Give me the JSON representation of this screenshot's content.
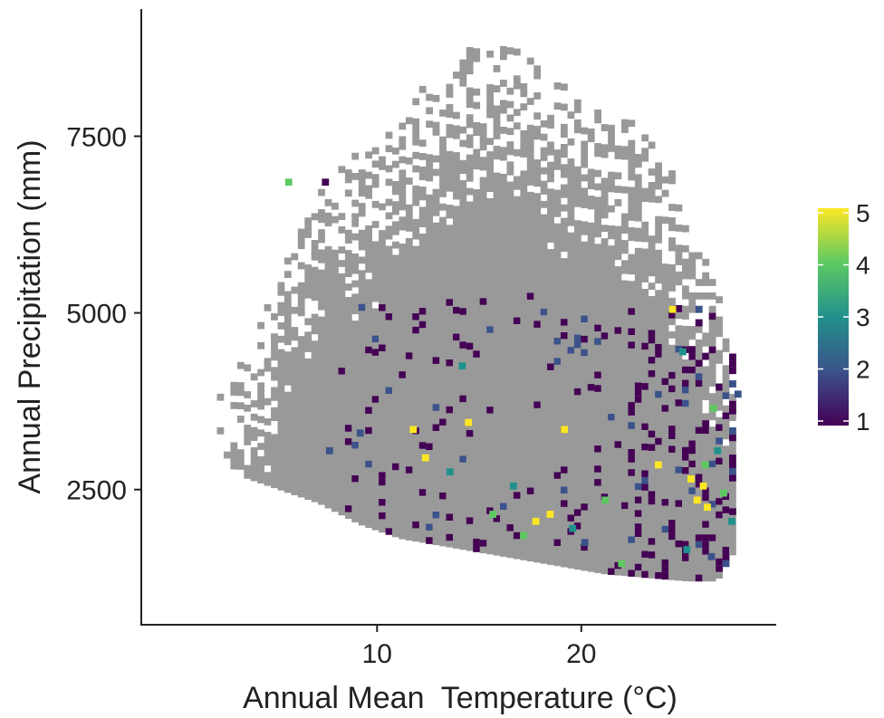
{
  "chart_data": {
    "type": "heatmap",
    "title": "",
    "xlabel": "Annual Mean  Temperature (°C)",
    "ylabel": "Annual Precipitation (mm)",
    "xlim": [
      -1.5,
      29.5
    ],
    "ylim": [
      600,
      9300
    ],
    "xticks": [
      10,
      20
    ],
    "xtick_labels": [
      "10",
      "20"
    ],
    "yticks": [
      2500,
      5000,
      7500
    ],
    "ytick_labels": [
      "2500",
      "5000",
      "7500"
    ],
    "grid": false,
    "bin_size": {
      "temperature": 0.33,
      "precipitation": 95
    },
    "background_cell_color": "#999999",
    "colorscale": "viridis",
    "colorscale_colors": [
      "#440154",
      "#3b528b",
      "#21918c",
      "#5ec962",
      "#fde725"
    ],
    "legend": {
      "placement": "right",
      "min": 1,
      "max": 5,
      "ticks": [
        1,
        2,
        3,
        4,
        5
      ],
      "tick_labels": [
        "1",
        "2",
        "3",
        "4",
        "5"
      ]
    },
    "coverage": {
      "description_points": "Upper precipitation bound and lower precipitation bound of the grey (value 0) region per temperature",
      "temperature": [
        1.5,
        3,
        5,
        7,
        9,
        11,
        13,
        15,
        17,
        19,
        21,
        23,
        25,
        26.5,
        27.5
      ],
      "upper_precipitation": [
        3700,
        4200,
        5500,
        6700,
        7300,
        7800,
        8400,
        8900,
        8600,
        8200,
        7900,
        7500,
        6600,
        5300,
        4300
      ],
      "lower_precipitation": [
        3400,
        2700,
        2500,
        2300,
        2000,
        1800,
        1700,
        1600,
        1500,
        1400,
        1300,
        1250,
        1200,
        1200,
        1700
      ]
    },
    "highlighted_cells": [
      {
        "t": 5.5,
        "p": 6800,
        "v": 4
      },
      {
        "t": 7.3,
        "p": 6800,
        "v": 1
      },
      {
        "t": 7.5,
        "p": 3000,
        "v": 2
      },
      {
        "t": 9.0,
        "p": 3250,
        "v": 2
      },
      {
        "t": 11.6,
        "p": 3300,
        "v": 5
      },
      {
        "t": 12.2,
        "p": 2900,
        "v": 5
      },
      {
        "t": 13.4,
        "p": 2700,
        "v": 3
      },
      {
        "t": 14.3,
        "p": 3400,
        "v": 5
      },
      {
        "t": 14.0,
        "p": 4200,
        "v": 3
      },
      {
        "t": 15.5,
        "p": 2100,
        "v": 4
      },
      {
        "t": 16.5,
        "p": 2500,
        "v": 3
      },
      {
        "t": 17.0,
        "p": 1800,
        "v": 4
      },
      {
        "t": 17.6,
        "p": 2000,
        "v": 5
      },
      {
        "t": 18.3,
        "p": 2100,
        "v": 5
      },
      {
        "t": 19.0,
        "p": 3300,
        "v": 5
      },
      {
        "t": 19.4,
        "p": 1900,
        "v": 3
      },
      {
        "t": 21.0,
        "p": 2300,
        "v": 4
      },
      {
        "t": 21.8,
        "p": 1400,
        "v": 4
      },
      {
        "t": 23.6,
        "p": 2800,
        "v": 5
      },
      {
        "t": 24.3,
        "p": 5000,
        "v": 5
      },
      {
        "t": 24.8,
        "p": 4400,
        "v": 3
      },
      {
        "t": 25.2,
        "p": 2600,
        "v": 5
      },
      {
        "t": 25.5,
        "p": 2300,
        "v": 5
      },
      {
        "t": 25.8,
        "p": 2500,
        "v": 5
      },
      {
        "t": 25.9,
        "p": 2800,
        "v": 4
      },
      {
        "t": 26.0,
        "p": 2200,
        "v": 5
      },
      {
        "t": 26.3,
        "p": 3600,
        "v": 4
      },
      {
        "t": 26.5,
        "p": 3000,
        "v": 3
      },
      {
        "t": 26.8,
        "p": 2400,
        "v": 4
      },
      {
        "t": 27.2,
        "p": 2000,
        "v": 3
      },
      {
        "t": 27.5,
        "p": 3800,
        "v": 2
      },
      {
        "t": 25.0,
        "p": 1600,
        "v": 3
      },
      {
        "t": 26.2,
        "p": 1500,
        "v": 2
      },
      {
        "t": 20.0,
        "p": 1700,
        "v": 2
      }
    ]
  }
}
